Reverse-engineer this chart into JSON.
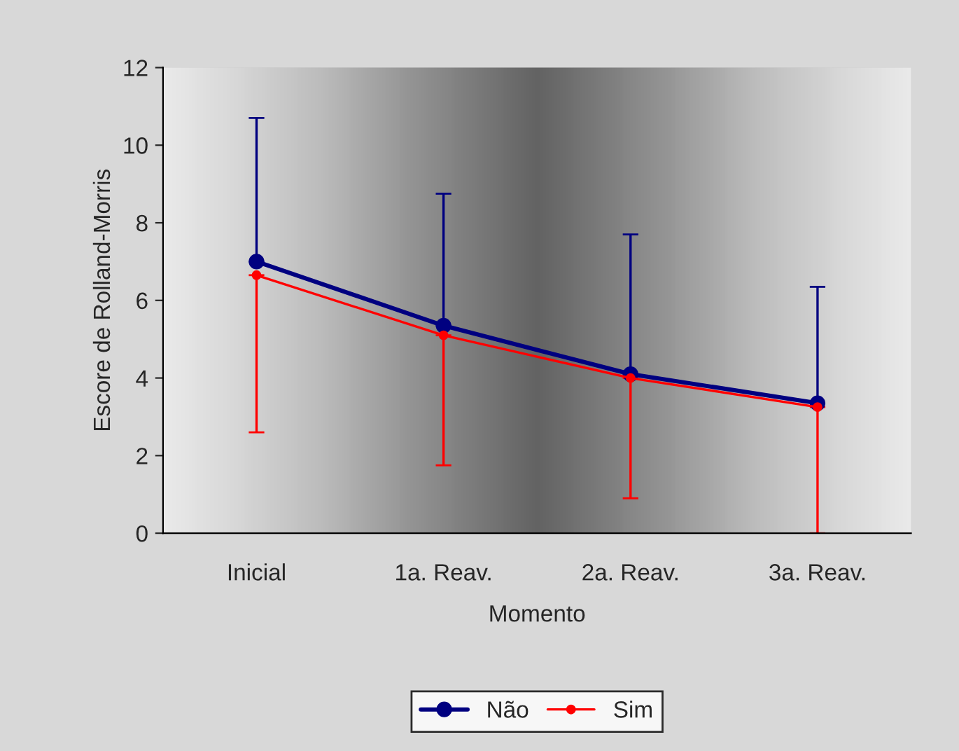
{
  "chart_data": {
    "type": "line",
    "xlabel": "Momento",
    "ylabel": "Escore de Rolland-Morris",
    "categories": [
      "Inicial",
      "1a. Reav.",
      "2a. Reav.",
      "3a. Reav."
    ],
    "series": [
      {
        "name": "Não",
        "color": "#000080",
        "values": [
          7.0,
          5.35,
          4.1,
          3.35
        ],
        "errors": [
          [
            7.0,
            10.7
          ],
          [
            5.35,
            8.75
          ],
          [
            4.1,
            7.7
          ],
          [
            3.35,
            6.35
          ]
        ]
      },
      {
        "name": "Sim",
        "color": "#ff0000",
        "values": [
          6.65,
          5.1,
          4.0,
          3.25
        ],
        "errors": [
          [
            2.6,
            6.65
          ],
          [
            1.75,
            5.1
          ],
          [
            0.9,
            4.0
          ],
          [
            0.0,
            3.25
          ]
        ]
      }
    ],
    "ylim": [
      0,
      12
    ],
    "yticks": [
      0,
      2,
      4,
      6,
      8,
      10,
      12
    ],
    "grid": false,
    "legend": "bottom",
    "marker": "circle",
    "line_style": "solid"
  }
}
